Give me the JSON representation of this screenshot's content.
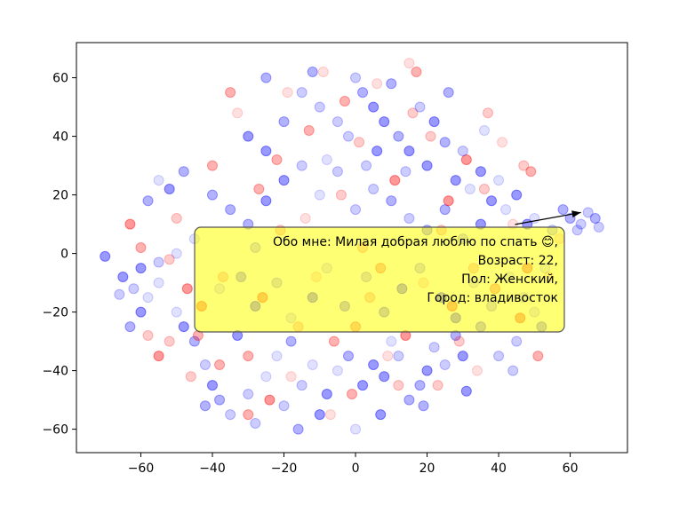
{
  "chart_data": {
    "type": "scatter",
    "title": "",
    "xlabel": "",
    "ylabel": "",
    "xlim": [
      -78,
      76
    ],
    "ylim": [
      -68,
      72
    ],
    "xticks": [
      -60,
      -40,
      -20,
      0,
      20,
      40,
      60
    ],
    "yticks": [
      -60,
      -40,
      -20,
      0,
      20,
      40,
      60
    ],
    "xtick_labels": [
      "−60",
      "−40",
      "−20",
      "0",
      "20",
      "40",
      "60"
    ],
    "ytick_labels": [
      "−60",
      "−40",
      "−20",
      "0",
      "20",
      "40",
      "60"
    ],
    "grid": false,
    "colors": {
      "blue": "#0000ff",
      "red": "#ff0000",
      "box_fill": "#ffff00",
      "box_edge": "#555555"
    },
    "series": [
      {
        "color": "#0000ff",
        "points": [
          [
            -70,
            -1
          ],
          [
            -65,
            -8
          ],
          [
            -62,
            -12
          ],
          [
            -60,
            -5
          ],
          [
            -58,
            -15
          ],
          [
            -55,
            -10
          ],
          [
            -52,
            22
          ],
          [
            -55,
            25
          ],
          [
            -50,
            -20
          ],
          [
            -48,
            -25
          ],
          [
            -45,
            -30
          ],
          [
            -42,
            -38
          ],
          [
            -40,
            -45
          ],
          [
            -38,
            -50
          ],
          [
            -35,
            -55
          ],
          [
            -30,
            -48
          ],
          [
            -28,
            -58
          ],
          [
            -25,
            -42
          ],
          [
            -22,
            -35
          ],
          [
            -20,
            -52
          ],
          [
            -18,
            -30
          ],
          [
            -15,
            -45
          ],
          [
            -12,
            -38
          ],
          [
            -10,
            -55
          ],
          [
            -8,
            -48
          ],
          [
            -5,
            -40
          ],
          [
            -2,
            -35
          ],
          [
            0,
            -60
          ],
          [
            2,
            -45
          ],
          [
            5,
            -38
          ],
          [
            8,
            -42
          ],
          [
            10,
            -30
          ],
          [
            12,
            -35
          ],
          [
            15,
            -50
          ],
          [
            18,
            -45
          ],
          [
            20,
            -40
          ],
          [
            22,
            -32
          ],
          [
            25,
            -38
          ],
          [
            28,
            -28
          ],
          [
            30,
            -35
          ],
          [
            35,
            -25
          ],
          [
            40,
            -35
          ],
          [
            45,
            -30
          ],
          [
            50,
            -20
          ],
          [
            52,
            -25
          ],
          [
            -30,
            40
          ],
          [
            -25,
            35
          ],
          [
            -20,
            45
          ],
          [
            -15,
            55
          ],
          [
            -10,
            50
          ],
          [
            -5,
            45
          ],
          [
            0,
            60
          ],
          [
            2,
            55
          ],
          [
            5,
            50
          ],
          [
            8,
            45
          ],
          [
            10,
            58
          ],
          [
            12,
            40
          ],
          [
            15,
            35
          ],
          [
            18,
            50
          ],
          [
            20,
            30
          ],
          [
            22,
            45
          ],
          [
            25,
            38
          ],
          [
            28,
            25
          ],
          [
            30,
            35
          ],
          [
            32,
            22
          ],
          [
            35,
            28
          ],
          [
            38,
            18
          ],
          [
            40,
            25
          ],
          [
            42,
            15
          ],
          [
            45,
            20
          ],
          [
            48,
            10
          ],
          [
            50,
            12
          ],
          [
            55,
            8
          ],
          [
            60,
            12
          ],
          [
            63,
            10
          ],
          [
            65,
            14
          ],
          [
            67,
            12
          ],
          [
            68,
            9
          ],
          [
            62,
            8
          ],
          [
            58,
            15
          ],
          [
            -40,
            20
          ],
          [
            -35,
            15
          ],
          [
            -30,
            10
          ],
          [
            -25,
            18
          ],
          [
            -20,
            25
          ],
          [
            -15,
            30
          ],
          [
            -10,
            20
          ],
          [
            -5,
            28
          ],
          [
            0,
            15
          ],
          [
            5,
            22
          ],
          [
            10,
            18
          ],
          [
            15,
            12
          ],
          [
            20,
            8
          ],
          [
            25,
            15
          ],
          [
            30,
            5
          ],
          [
            35,
            10
          ],
          [
            -45,
            5
          ],
          [
            -50,
            0
          ],
          [
            -55,
            -3
          ],
          [
            -60,
            -20
          ],
          [
            -38,
            -12
          ],
          [
            -32,
            -8
          ],
          [
            -28,
            -18
          ],
          [
            -22,
            -10
          ],
          [
            -18,
            -22
          ],
          [
            -12,
            -15
          ],
          [
            -8,
            -5
          ],
          [
            -3,
            -18
          ],
          [
            3,
            -8
          ],
          [
            8,
            -20
          ],
          [
            13,
            -12
          ],
          [
            18,
            -5
          ],
          [
            24,
            -15
          ],
          [
            28,
            -22
          ],
          [
            33,
            -10
          ],
          [
            38,
            -18
          ],
          [
            43,
            -8
          ],
          [
            47,
            -15
          ],
          [
            -25,
            60
          ],
          [
            -12,
            62
          ],
          [
            -2,
            40
          ],
          [
            6,
            35
          ],
          [
            14,
            28
          ],
          [
            26,
            55
          ],
          [
            36,
            42
          ],
          [
            -48,
            28
          ],
          [
            -58,
            18
          ],
          [
            -63,
            -25
          ],
          [
            -66,
            -14
          ],
          [
            -42,
            -52
          ],
          [
            -33,
            -28
          ],
          [
            -16,
            -60
          ],
          [
            7,
            -55
          ],
          [
            19,
            -52
          ],
          [
            31,
            -47
          ],
          [
            44,
            -40
          ],
          [
            53,
            -5
          ],
          [
            -8,
            32
          ],
          [
            3,
            30
          ],
          [
            -28,
            2
          ]
        ]
      },
      {
        "color": "#ff0000",
        "points": [
          [
            -63,
            10
          ],
          [
            -60,
            2
          ],
          [
            -58,
            -28
          ],
          [
            -52,
            -2
          ],
          [
            -50,
            12
          ],
          [
            -46,
            -42
          ],
          [
            -43,
            -18
          ],
          [
            -40,
            30
          ],
          [
            -37,
            -8
          ],
          [
            -33,
            48
          ],
          [
            -30,
            -35
          ],
          [
            -27,
            22
          ],
          [
            -24,
            -50
          ],
          [
            -21,
            8
          ],
          [
            -19,
            55
          ],
          [
            -16,
            -25
          ],
          [
            -13,
            42
          ],
          [
            -11,
            -8
          ],
          [
            -9,
            62
          ],
          [
            -6,
            -30
          ],
          [
            -4,
            20
          ],
          [
            -1,
            -48
          ],
          [
            1,
            38
          ],
          [
            4,
            -15
          ],
          [
            6,
            58
          ],
          [
            9,
            -35
          ],
          [
            11,
            25
          ],
          [
            14,
            -28
          ],
          [
            16,
            48
          ],
          [
            19,
            -10
          ],
          [
            21,
            40
          ],
          [
            23,
            -45
          ],
          [
            26,
            18
          ],
          [
            29,
            -30
          ],
          [
            31,
            32
          ],
          [
            33,
            -5
          ],
          [
            36,
            22
          ],
          [
            39,
            -12
          ],
          [
            41,
            38
          ],
          [
            44,
            10
          ],
          [
            46,
            -22
          ],
          [
            49,
            28
          ],
          [
            51,
            -35
          ],
          [
            54,
            -8
          ],
          [
            57,
            5
          ],
          [
            -55,
            -35
          ],
          [
            -47,
            -12
          ],
          [
            -35,
            55
          ],
          [
            -26,
            -15
          ],
          [
            -14,
            12
          ],
          [
            -3,
            52
          ],
          [
            7,
            -5
          ],
          [
            17,
            62
          ],
          [
            27,
            -18
          ],
          [
            37,
            48
          ],
          [
            47,
            30
          ],
          [
            12,
            -45
          ],
          [
            -18,
            -42
          ],
          [
            -38,
            -38
          ],
          [
            -7,
            -55
          ],
          [
            24,
            8
          ],
          [
            2,
            2
          ],
          [
            -22,
            32
          ],
          [
            34,
            -40
          ],
          [
            -44,
            -28
          ],
          [
            -52,
            -30
          ],
          [
            48,
            -5
          ],
          [
            15,
            65
          ],
          [
            -30,
            -55
          ],
          [
            0,
            -25
          ]
        ]
      }
    ],
    "annotation": {
      "lines": [
        "Обо мне: Милая добрая люблю по спать 😊,",
        "Возраст: 22,",
        "Пол: Женский,",
        "Город: владивосток"
      ],
      "point": [
        63,
        14
      ],
      "text_anchor": [
        57,
        9
      ]
    }
  }
}
